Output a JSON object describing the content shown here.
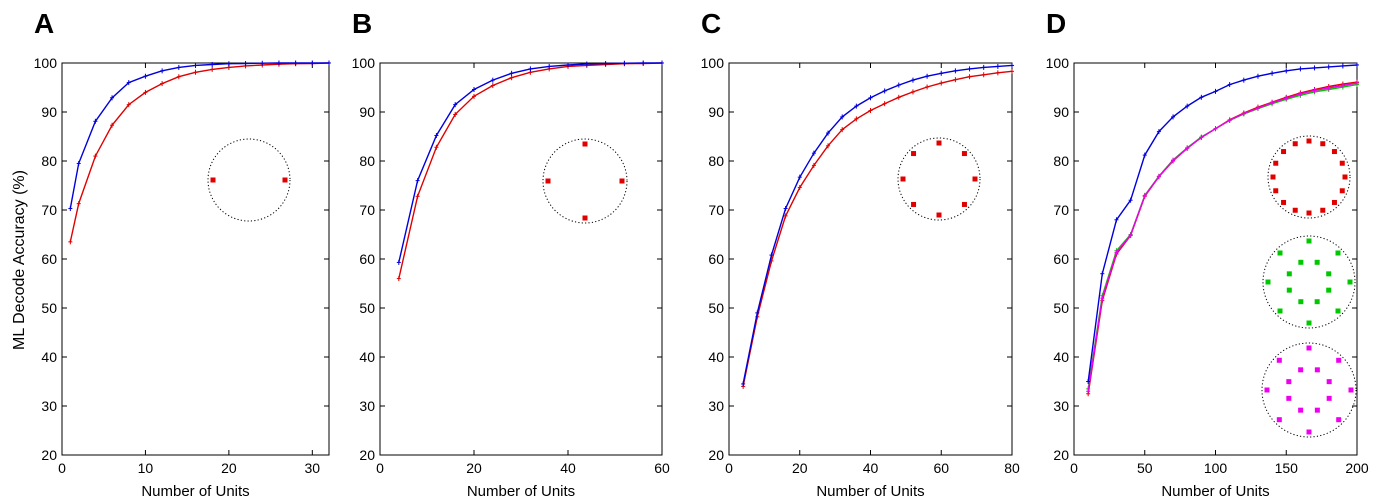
{
  "ylabel": "ML Decode Accuracy (%)",
  "colors": {
    "blue": "#0000dd",
    "red": "#e00000",
    "green": "#00c800",
    "magenta": "#ee00ee",
    "axis": "#000000"
  },
  "chart_data": [
    {
      "type": "line",
      "panel_label": "A",
      "xlabel": "Number of Units",
      "ylabel": "ML Decode Accuracy (%)",
      "xlim": [
        0,
        32
      ],
      "ylim": [
        20,
        100
      ],
      "xticks": [
        0,
        10,
        20,
        30
      ],
      "yticks": [
        20,
        30,
        40,
        50,
        60,
        70,
        80,
        90,
        100
      ],
      "series": [
        {
          "color": "blue",
          "x": [
            1,
            2,
            4,
            6,
            8,
            10,
            12,
            14,
            16,
            18,
            20,
            22,
            24,
            26,
            28,
            30,
            32
          ],
          "y": [
            70.3,
            79.5,
            88.1,
            92.9,
            96.0,
            97.3,
            98.4,
            99.1,
            99.5,
            99.7,
            99.85,
            99.9,
            99.95,
            100,
            100,
            100,
            100
          ]
        },
        {
          "color": "red",
          "x": [
            1,
            2,
            4,
            6,
            8,
            10,
            12,
            14,
            16,
            18,
            20,
            22,
            24,
            26,
            28,
            30,
            32
          ],
          "y": [
            63.5,
            71.3,
            81.0,
            87.3,
            91.5,
            94.0,
            95.8,
            97.2,
            98.1,
            98.7,
            99.1,
            99.4,
            99.6,
            99.75,
            99.85,
            99.9,
            100
          ]
        }
      ],
      "insets": [
        {
          "color": "red",
          "n": 2,
          "rings": 1
        }
      ]
    },
    {
      "type": "line",
      "panel_label": "B",
      "xlabel": "Number of Units",
      "ylabel": "",
      "xlim": [
        0,
        60
      ],
      "ylim": [
        20,
        100
      ],
      "xticks": [
        0,
        20,
        40,
        60
      ],
      "yticks": [
        20,
        30,
        40,
        50,
        60,
        70,
        80,
        90,
        100
      ],
      "series": [
        {
          "color": "blue",
          "x": [
            4,
            8,
            12,
            16,
            20,
            24,
            28,
            32,
            36,
            40,
            44,
            48,
            52,
            56,
            60
          ],
          "y": [
            59.3,
            76.0,
            85.2,
            91.5,
            94.6,
            96.5,
            97.9,
            98.8,
            99.3,
            99.6,
            99.8,
            99.9,
            99.95,
            100,
            100
          ]
        },
        {
          "color": "red",
          "x": [
            4,
            8,
            12,
            16,
            20,
            24,
            28,
            32,
            36,
            40,
            44,
            48,
            52,
            56,
            60
          ],
          "y": [
            56.0,
            72.8,
            82.8,
            89.5,
            93.2,
            95.4,
            97.0,
            98.1,
            98.8,
            99.3,
            99.5,
            99.7,
            99.85,
            99.9,
            100
          ]
        }
      ],
      "insets": [
        {
          "color": "red",
          "n": 4,
          "rings": 1
        }
      ]
    },
    {
      "type": "line",
      "panel_label": "C",
      "xlabel": "Number of Units",
      "ylabel": "",
      "xlim": [
        0,
        80
      ],
      "ylim": [
        20,
        100
      ],
      "xticks": [
        0,
        20,
        40,
        60,
        80
      ],
      "yticks": [
        20,
        30,
        40,
        50,
        60,
        70,
        80,
        90,
        100
      ],
      "series": [
        {
          "color": "blue",
          "x": [
            4,
            8,
            12,
            16,
            20,
            24,
            28,
            32,
            36,
            40,
            44,
            48,
            52,
            56,
            60,
            64,
            68,
            72,
            76,
            80
          ],
          "y": [
            34.5,
            49.0,
            60.8,
            70.3,
            76.7,
            81.6,
            85.7,
            89.0,
            91.2,
            92.9,
            94.3,
            95.5,
            96.5,
            97.3,
            97.9,
            98.4,
            98.8,
            99.1,
            99.3,
            99.5
          ]
        },
        {
          "color": "red",
          "x": [
            4,
            8,
            12,
            16,
            20,
            24,
            28,
            32,
            36,
            40,
            44,
            48,
            52,
            56,
            60,
            64,
            68,
            72,
            76,
            80
          ],
          "y": [
            34.0,
            48.2,
            59.6,
            68.8,
            74.6,
            79.1,
            83.1,
            86.4,
            88.6,
            90.3,
            91.7,
            93.0,
            94.1,
            95.1,
            95.9,
            96.6,
            97.2,
            97.6,
            98.0,
            98.3
          ]
        }
      ],
      "insets": [
        {
          "color": "red",
          "n": 8,
          "rings": 1
        }
      ]
    },
    {
      "type": "line",
      "panel_label": "D",
      "xlabel": "Number of Units",
      "ylabel": "",
      "xlim": [
        0,
        200
      ],
      "ylim": [
        20,
        100
      ],
      "xticks": [
        0,
        50,
        100,
        150,
        200
      ],
      "yticks": [
        20,
        30,
        40,
        50,
        60,
        70,
        80,
        90,
        100
      ],
      "series": [
        {
          "color": "blue",
          "x": [
            10,
            20,
            30,
            40,
            50,
            60,
            70,
            80,
            90,
            100,
            110,
            120,
            130,
            140,
            150,
            160,
            170,
            180,
            190,
            200
          ],
          "y": [
            35.0,
            57.0,
            68.0,
            72.0,
            81.2,
            86.0,
            89.0,
            91.2,
            93.0,
            94.2,
            95.6,
            96.5,
            97.3,
            97.9,
            98.4,
            98.8,
            99.0,
            99.2,
            99.4,
            99.6
          ]
        },
        {
          "color": "red",
          "x": [
            10,
            20,
            30,
            40,
            50,
            60,
            70,
            80,
            90,
            100,
            110,
            120,
            130,
            140,
            150,
            160,
            170,
            180,
            190,
            200
          ],
          "y": [
            32.5,
            51.5,
            61.0,
            64.8,
            72.8,
            76.8,
            80.0,
            82.6,
            84.8,
            86.6,
            88.4,
            89.8,
            91.0,
            92.0,
            93.0,
            93.9,
            94.6,
            95.2,
            95.7,
            96.1
          ]
        },
        {
          "color": "green",
          "x": [
            10,
            20,
            30,
            40,
            50,
            60,
            70,
            80,
            90,
            100,
            110,
            120,
            130,
            140,
            150,
            160,
            170,
            180,
            190,
            200
          ],
          "y": [
            33.5,
            52.5,
            61.7,
            65.0,
            73.0,
            76.9,
            80.2,
            82.7,
            84.9,
            86.6,
            88.3,
            89.6,
            90.7,
            91.7,
            92.6,
            93.4,
            94.1,
            94.6,
            95.1,
            95.6
          ]
        },
        {
          "color": "magenta",
          "x": [
            10,
            20,
            30,
            40,
            50,
            60,
            70,
            80,
            90,
            100,
            110,
            120,
            130,
            140,
            150,
            160,
            170,
            180,
            190,
            200
          ],
          "y": [
            33.0,
            52.0,
            61.3,
            64.9,
            72.9,
            76.8,
            80.1,
            82.6,
            84.8,
            86.6,
            88.3,
            89.7,
            90.8,
            91.9,
            92.8,
            93.7,
            94.4,
            94.9,
            95.4,
            95.9
          ]
        }
      ],
      "insets": [
        {
          "color": "red",
          "n": 16,
          "rings": 1
        },
        {
          "color": "green",
          "n": 16,
          "rings": 2
        },
        {
          "color": "magenta",
          "n": 16,
          "rings": 2
        }
      ]
    }
  ]
}
